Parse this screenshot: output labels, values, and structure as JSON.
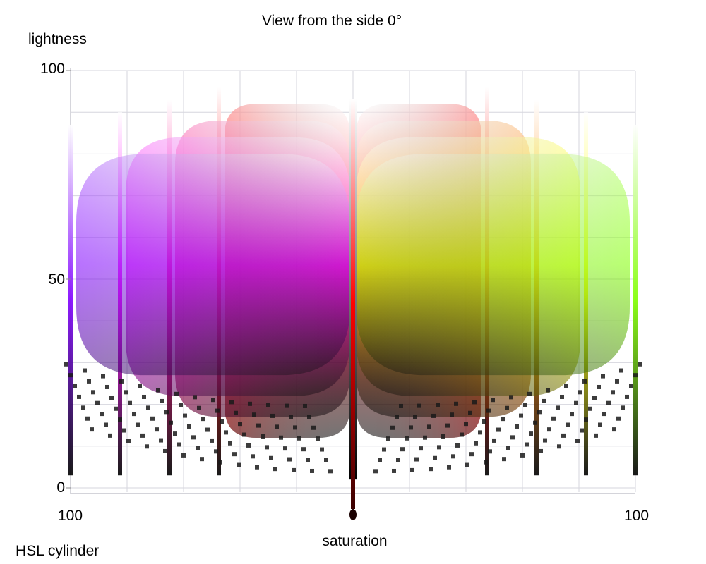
{
  "chart_data": {
    "type": "scatter",
    "title": "View from the side 0°",
    "xlabel": "saturation",
    "ylabel": "lightness",
    "caption": "HSL cylinder",
    "x_axis": {
      "scale": "mirrored, saturation 100 → 0 → 100",
      "tick_labels": [
        "100",
        "100"
      ],
      "range": [
        -100,
        100
      ]
    },
    "y_axis": {
      "tick_labels": [
        "0",
        "50",
        "100"
      ],
      "ticks": [
        0,
        50,
        100
      ],
      "range": [
        0,
        100
      ]
    },
    "grid": true,
    "view_angle_deg": 0,
    "series": [
      {
        "side": "left",
        "hue_colors": [
          "#ff0000",
          "#ff0080",
          "#ff00ff",
          "#8000ff"
        ]
      },
      {
        "side": "right",
        "hue_colors": [
          "#ff0000",
          "#ff8000",
          "#ffff00",
          "#80ff00"
        ]
      }
    ]
  }
}
